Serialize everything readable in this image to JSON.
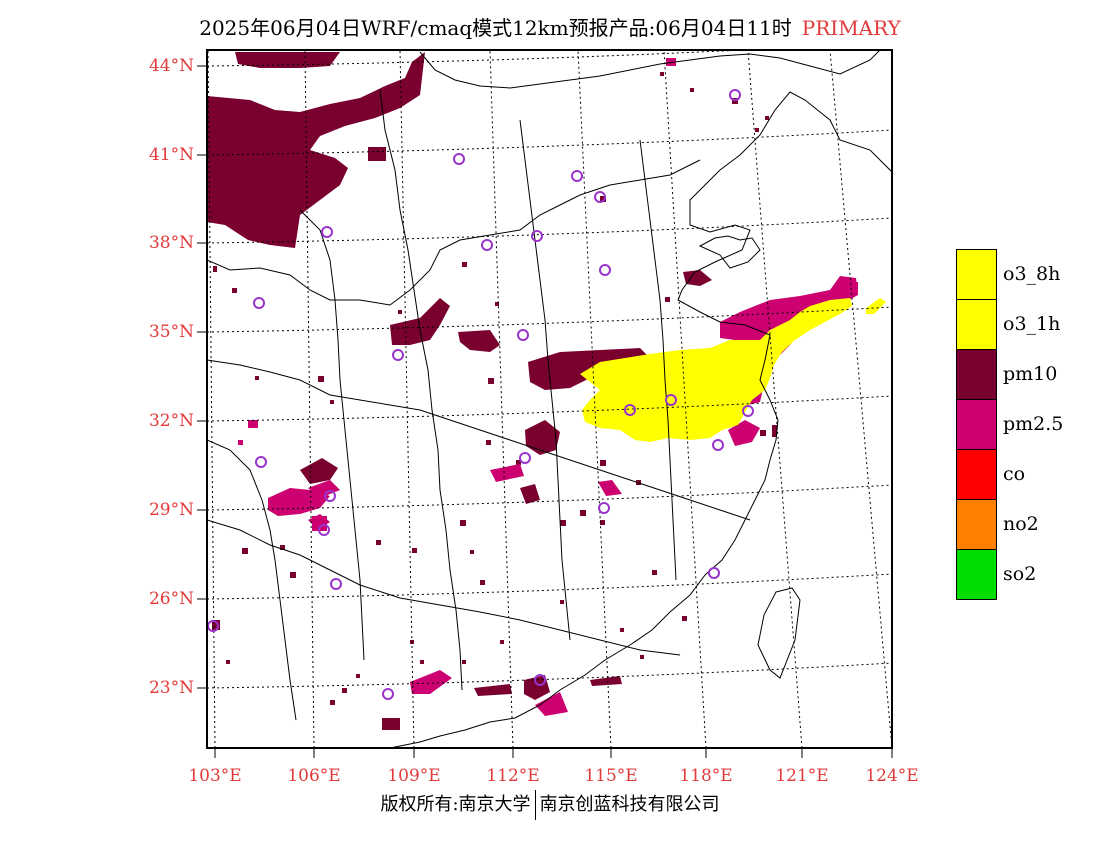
{
  "title": {
    "main": "2025年06月04日WRF/cmaq模式12km预报产品:06月04日11时",
    "type": "PRIMARY"
  },
  "axes": {
    "lat_labels": [
      "44°N",
      "41°N",
      "38°N",
      "35°N",
      "32°N",
      "29°N",
      "26°N",
      "23°N"
    ],
    "lon_labels": [
      "103°E",
      "106°E",
      "109°E",
      "112°E",
      "115°E",
      "118°E",
      "121°E",
      "124°E"
    ]
  },
  "legend": [
    {
      "label": "o3_8h",
      "color": "#ffff00"
    },
    {
      "label": "o3_1h",
      "color": "#ffff00"
    },
    {
      "label": "pm10",
      "color": "#7a0030"
    },
    {
      "label": "pm2.5",
      "color": "#cc0070"
    },
    {
      "label": "co",
      "color": "#ff0000"
    },
    {
      "label": "no2",
      "color": "#ff7f00"
    },
    {
      "label": "so2",
      "color": "#00dd00"
    }
  ],
  "colors": {
    "label_red": "#e23a3a",
    "station_marker": "#9933cc",
    "o3": "#ffff00",
    "pm10": "#7a0030",
    "pm25": "#cc0070"
  },
  "copyright": {
    "left": "版权所有:南京大学",
    "right": "南京创蓝科技有限公司"
  }
}
